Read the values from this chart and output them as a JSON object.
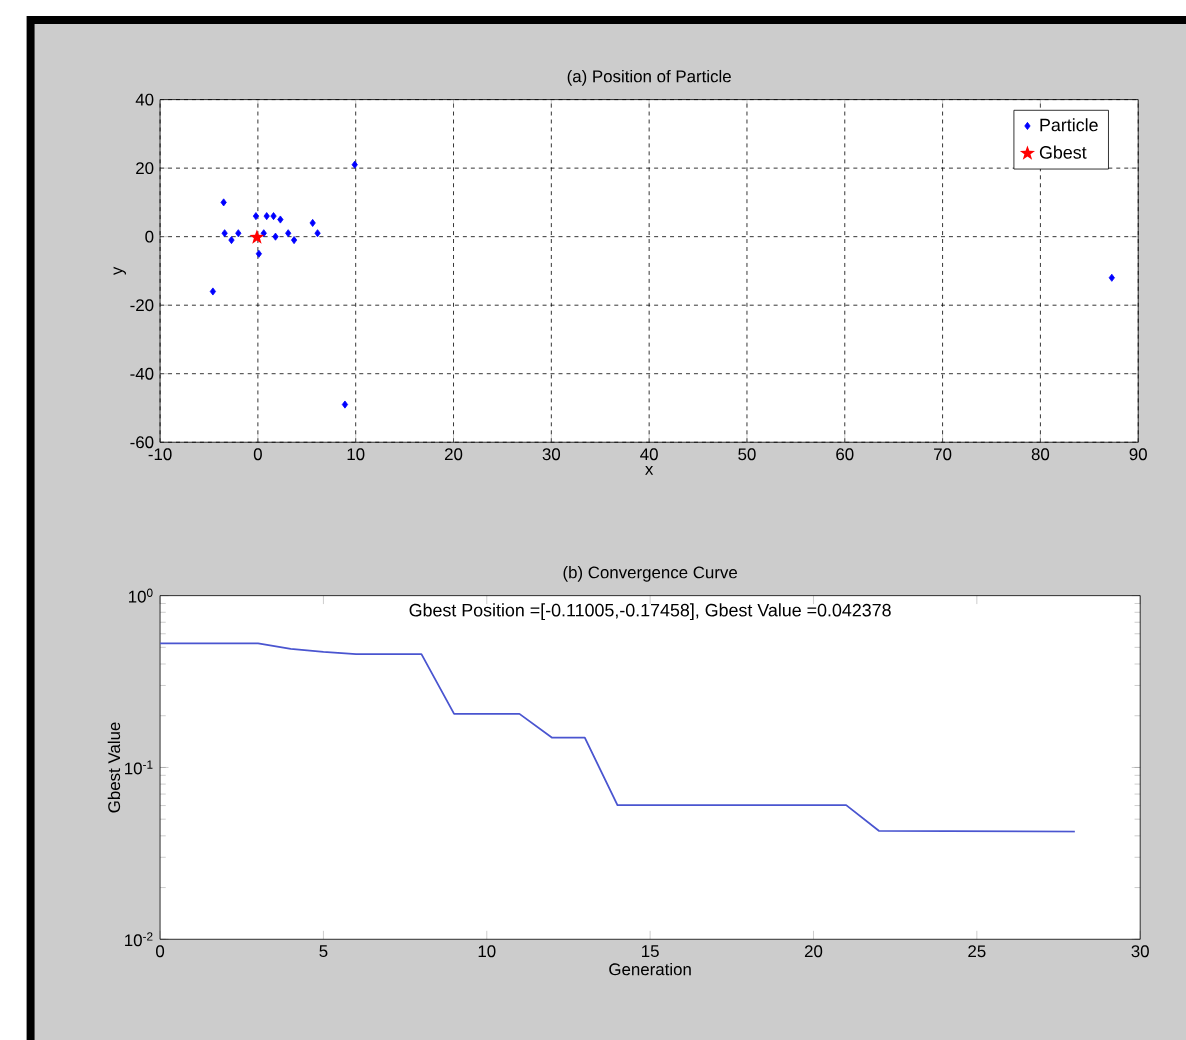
{
  "chart_data": [
    {
      "type": "scatter",
      "title": "(a) Position of Particle",
      "xlabel": "x",
      "ylabel": "y",
      "xlim": [
        -10,
        90
      ],
      "ylim": [
        -60,
        40
      ],
      "xticks": [
        -10,
        0,
        10,
        20,
        30,
        40,
        50,
        60,
        70,
        80,
        90
      ],
      "yticks": [
        -60,
        -40,
        -20,
        0,
        20,
        40
      ],
      "grid": true,
      "legend": "top right",
      "series": [
        {
          "name": "Particle",
          "color": "#0000ff",
          "marker": "diamond",
          "x": [
            9.9,
            -3.5,
            -0.2,
            0.9,
            1.6,
            2.3,
            -3.4,
            -2.7,
            -2,
            0.6,
            1.8,
            3.1,
            3.7,
            5.6,
            6.1,
            0.1,
            -4.6,
            8.9,
            87.3
          ],
          "values": [
            21,
            10,
            6,
            6,
            6,
            5,
            1,
            -1,
            1,
            1,
            0,
            1,
            -1,
            4,
            1,
            -5,
            -16,
            -49,
            -12
          ]
        },
        {
          "name": "Gbest",
          "color": "#ff0000",
          "marker": "star",
          "x": [
            -0.1
          ],
          "values": [
            -0.2
          ]
        }
      ]
    },
    {
      "type": "line",
      "title": "(b) Convergence Curve",
      "xlabel": "Generation",
      "ylabel": "Gbest Value",
      "log": "y",
      "xlim": [
        0,
        30
      ],
      "ylim": [
        0.01,
        1
      ],
      "xticks": [
        0,
        5,
        10,
        15,
        20,
        25,
        30
      ],
      "yticks": [
        {
          "value": 0.01,
          "label": "10$^{-2}$"
        },
        {
          "value": 0.1,
          "label": "10$^{-1}$"
        },
        {
          "value": 1,
          "label": "10$^{0}$"
        }
      ],
      "annotations": [
        "Gbest Position =[-0.11005,-0.17458], Gbest Value =0.042378"
      ],
      "series": [
        {
          "color": "#4a55d0",
          "x": [
            0,
            3,
            4,
            5,
            6,
            8,
            9,
            11,
            12,
            13,
            14,
            21,
            22,
            28
          ],
          "values": [
            0.527,
            0.527,
            0.49,
            0.47,
            0.457,
            0.457,
            0.205,
            0.205,
            0.149,
            0.149,
            0.0604,
            0.0604,
            0.0428,
            0.042378
          ]
        }
      ]
    }
  ]
}
